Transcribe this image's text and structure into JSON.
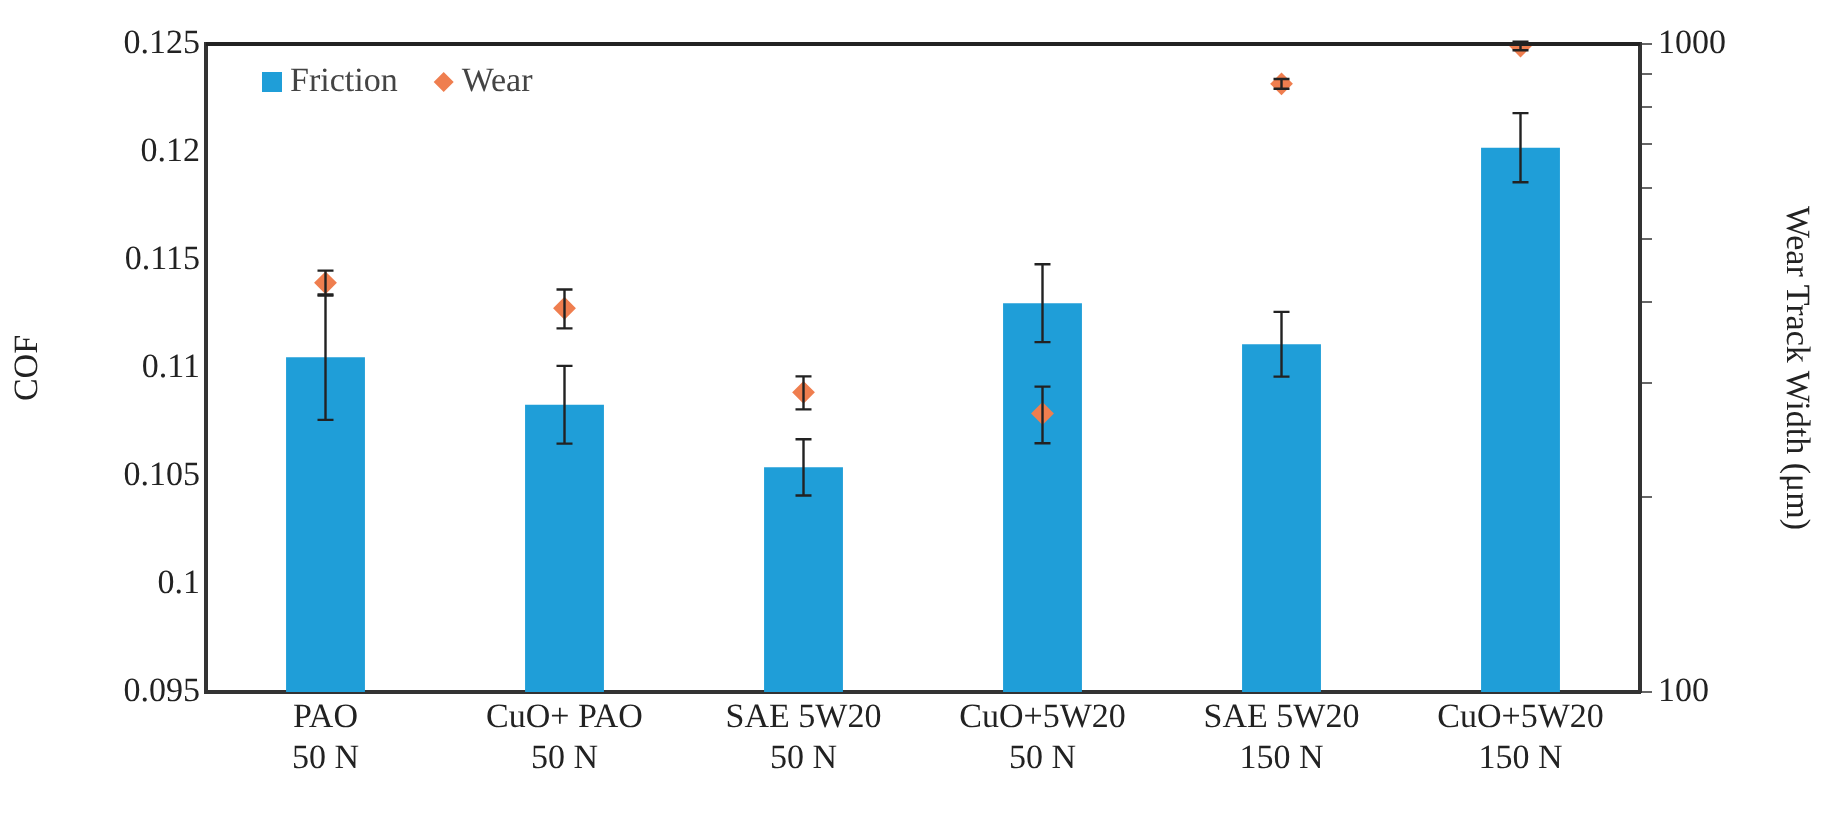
{
  "chart_data": {
    "type": "bar",
    "categories": [
      "PAO\n50 N",
      "CuO+ PAO\n50 N",
      "SAE 5W20\n50 N",
      "CuO+5W20\n50 N",
      "SAE 5W20\n150 N",
      "CuO+5W20\n150 N"
    ],
    "ylabel": "COF",
    "y2label": "Wear Track Width (μm)",
    "series": [
      {
        "name": "Friction",
        "color": "#1f9ed8",
        "values": [
          0.1105,
          0.1083,
          0.1054,
          0.113,
          0.1111,
          0.1202
        ],
        "errors": [
          0.0029,
          0.0018,
          0.0013,
          0.0018,
          0.0015,
          0.0016
        ]
      },
      {
        "name": "Wear",
        "type": "scatter",
        "axis": "y2",
        "color": "#ef7e4f",
        "values": [
          428,
          391,
          290,
          269,
          868,
          993
        ],
        "errors": [
          19,
          27,
          17,
          27,
          15,
          15
        ]
      }
    ],
    "ylim": [
      0.095,
      0.125
    ],
    "yticks": [
      0.095,
      0.1,
      0.105,
      0.11,
      0.115,
      0.12,
      0.125
    ],
    "y2lim": [
      100,
      1000
    ],
    "y2ticks": [
      100,
      {
        "value": 200,
        "label": null
      },
      {
        "value": 300,
        "label": null
      },
      {
        "value": 400,
        "label": null
      },
      {
        "value": 500,
        "label": null
      },
      {
        "value": 600,
        "label": null
      },
      {
        "value": 700,
        "label": null
      },
      {
        "value": 800,
        "label": null
      },
      {
        "value": 900,
        "label": null
      },
      1000
    ],
    "log": "y2",
    "grid": false,
    "legend": "top left",
    "marker": "diamond"
  }
}
